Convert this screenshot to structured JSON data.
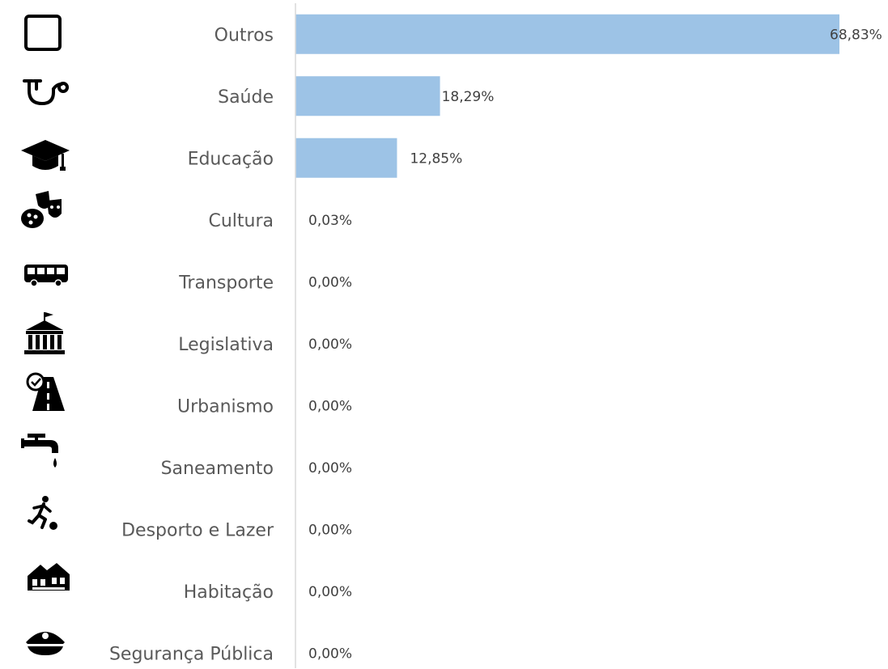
{
  "chart_data": {
    "type": "bar",
    "orientation": "horizontal",
    "categories": [
      "Outros",
      "Saúde",
      "Educação",
      "Cultura",
      "Transporte",
      "Legislativa",
      "Urbanismo",
      "Saneamento",
      "Desporto e Lazer",
      "Habitação",
      "Segurança Pública"
    ],
    "values": [
      68.83,
      18.29,
      12.85,
      0.03,
      0.0,
      0.0,
      0.0,
      0.0,
      0.0,
      0.0,
      0.0
    ],
    "value_labels": [
      "68,83%",
      "18,29%",
      "12,85%",
      "0,03%",
      "0,00%",
      "0,00%",
      "0,00%",
      "0,00%",
      "0,00%",
      "0,00%",
      "0,00%"
    ],
    "icons": [
      "square-outline-icon",
      "stethoscope-icon",
      "graduation-cap-icon",
      "theater-masks-palette-icon",
      "bus-icon",
      "government-building-icon",
      "road-checkmark-icon",
      "water-tap-icon",
      "running-soccer-icon",
      "houses-icon",
      "police-cap-icon"
    ],
    "bar_color": "#9DC3E6",
    "xlim": [
      0,
      70
    ],
    "grid": false,
    "legend": "none",
    "title": "",
    "xlabel": "",
    "ylabel": ""
  }
}
